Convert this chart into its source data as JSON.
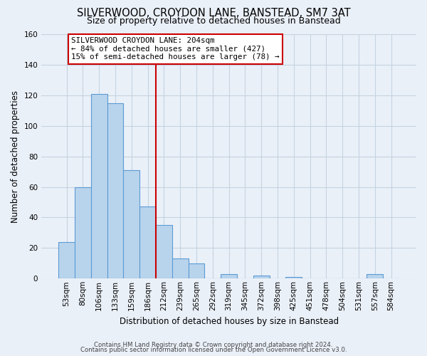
{
  "title": "SILVERWOOD, CROYDON LANE, BANSTEAD, SM7 3AT",
  "subtitle": "Size of property relative to detached houses in Banstead",
  "xlabel": "Distribution of detached houses by size in Banstead",
  "ylabel": "Number of detached properties",
  "bar_labels": [
    "53sqm",
    "80sqm",
    "106sqm",
    "133sqm",
    "159sqm",
    "186sqm",
    "212sqm",
    "239sqm",
    "265sqm",
    "292sqm",
    "319sqm",
    "345sqm",
    "372sqm",
    "398sqm",
    "425sqm",
    "451sqm",
    "478sqm",
    "504sqm",
    "531sqm",
    "557sqm",
    "584sqm"
  ],
  "bar_values": [
    24,
    60,
    121,
    115,
    71,
    47,
    35,
    13,
    10,
    0,
    3,
    0,
    2,
    0,
    1,
    0,
    0,
    0,
    0,
    3,
    0
  ],
  "bar_color": "#b8d4ec",
  "bar_edge_color": "#5b9bd5",
  "vline_color": "#cc0000",
  "ylim": [
    0,
    160
  ],
  "yticks": [
    0,
    20,
    40,
    60,
    80,
    100,
    120,
    140,
    160
  ],
  "annotation_title": "SILVERWOOD CROYDON LANE: 204sqm",
  "annotation_line1": "← 84% of detached houses are smaller (427)",
  "annotation_line2": "15% of semi-detached houses are larger (78) →",
  "footer1": "Contains HM Land Registry data © Crown copyright and database right 2024.",
  "footer2": "Contains public sector information licensed under the Open Government Licence v3.0.",
  "bg_color": "#eaf0f8",
  "plot_bg_color": "#eaf0f8",
  "grid_color": "#c5d3e0"
}
